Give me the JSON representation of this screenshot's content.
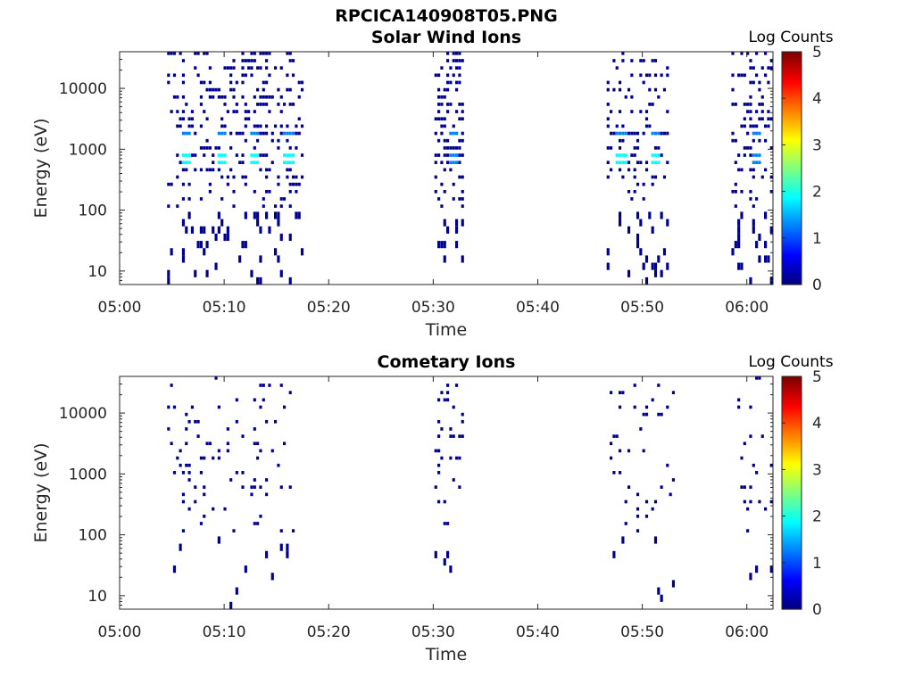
{
  "figure_title": "RPCICA140908T05.PNG",
  "colormap": [
    "#00008f",
    "#0000ff",
    "#0080ff",
    "#00ffff",
    "#80ff80",
    "#ffff00",
    "#ff8000",
    "#ff0000",
    "#800000"
  ],
  "chart_data": [
    {
      "type": "heatmap",
      "title": "Solar Wind Ions",
      "xlabel": "Time",
      "ylabel": "Energy (eV)",
      "x_ticks": [
        "05:00",
        "05:10",
        "05:20",
        "05:30",
        "05:40",
        "05:50",
        "06:00"
      ],
      "x_tick_minutes": [
        0,
        10,
        20,
        30,
        40,
        50,
        60
      ],
      "x_range_minutes": [
        0,
        62.5
      ],
      "y_scale": "log",
      "y_ticks": [
        "10",
        "100",
        "1000",
        "10000"
      ],
      "y_tick_values": [
        10,
        100,
        1000,
        10000
      ],
      "y_range": [
        6,
        40000
      ],
      "colorbar": {
        "label": "Log Counts",
        "ticks": [
          "0",
          "1",
          "2",
          "3",
          "4",
          "5"
        ],
        "range": [
          0,
          5
        ]
      },
      "bursts": [
        {
          "start": 4.5,
          "end": 17.5,
          "density": 0.55,
          "peak_energy": 650,
          "peak_level": 1.6,
          "peak_times": [
            6.5,
            9.8,
            13.0,
            16.2
          ]
        },
        {
          "start": 30.0,
          "end": 33.0,
          "density": 0.8,
          "peak_energy": 650,
          "peak_level": 1.5,
          "peak_times": [
            32.0
          ]
        },
        {
          "start": 46.5,
          "end": 52.5,
          "density": 0.5,
          "peak_energy": 620,
          "peak_level": 1.6,
          "peak_times": [
            48.0,
            51.2
          ]
        },
        {
          "start": 58.5,
          "end": 62.5,
          "density": 0.5,
          "peak_energy": 650,
          "peak_level": 1.5,
          "peak_times": [
            61.0
          ]
        }
      ]
    },
    {
      "type": "heatmap",
      "title": "Cometary Ions",
      "xlabel": "Time",
      "ylabel": "Energy (eV)",
      "x_ticks": [
        "05:00",
        "05:10",
        "05:20",
        "05:30",
        "05:40",
        "05:50",
        "06:00"
      ],
      "x_tick_minutes": [
        0,
        10,
        20,
        30,
        40,
        50,
        60
      ],
      "x_range_minutes": [
        0,
        62.5
      ],
      "y_scale": "log",
      "y_ticks": [
        "10",
        "100",
        "1000",
        "10000"
      ],
      "y_tick_values": [
        10,
        100,
        1000,
        10000
      ],
      "y_range": [
        6,
        40000
      ],
      "colorbar": {
        "label": "Log Counts",
        "ticks": [
          "0",
          "1",
          "2",
          "3",
          "4",
          "5"
        ],
        "range": [
          0,
          5
        ]
      },
      "bursts": [
        {
          "start": 4.5,
          "end": 17.0,
          "density": 0.18,
          "peak_energy": 0,
          "peak_level": 0,
          "peak_times": []
        },
        {
          "start": 30.0,
          "end": 33.0,
          "density": 0.45,
          "peak_energy": 0,
          "peak_level": 0,
          "peak_times": []
        },
        {
          "start": 46.5,
          "end": 53.0,
          "density": 0.15,
          "peak_energy": 0,
          "peak_level": 0,
          "peak_times": []
        },
        {
          "start": 59.0,
          "end": 62.5,
          "density": 0.2,
          "peak_energy": 0,
          "peak_level": 0,
          "peak_times": []
        }
      ]
    }
  ]
}
